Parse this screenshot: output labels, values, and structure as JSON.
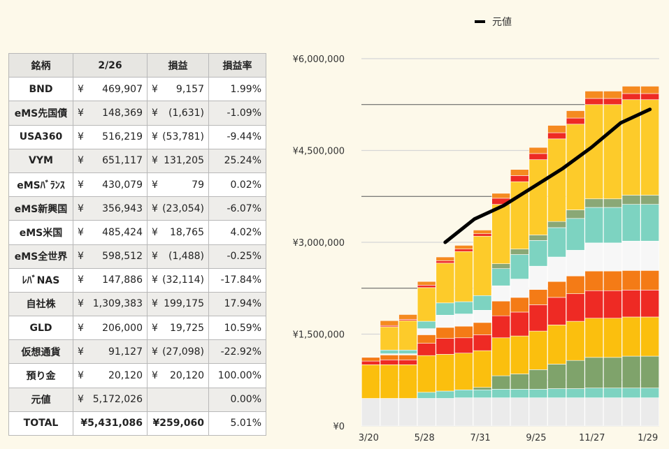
{
  "table": {
    "headers": [
      "銘柄",
      "2/26",
      "損益",
      "損益率"
    ],
    "rows": [
      {
        "name": "BND",
        "value_yen": "¥",
        "value": "469,907",
        "pl_yen": "¥",
        "pl": "9,157",
        "rate": "1.99%"
      },
      {
        "name": "eMS先国債",
        "value_yen": "¥",
        "value": "148,369",
        "pl_yen": "¥",
        "pl": "(1,631)",
        "rate": "-1.09%"
      },
      {
        "name": "USA360",
        "value_yen": "¥",
        "value": "516,219",
        "pl_yen": "¥",
        "pl": "(53,781)",
        "rate": "-9.44%"
      },
      {
        "name": "VYM",
        "value_yen": "¥",
        "value": "651,117",
        "pl_yen": "¥",
        "pl": "131,205",
        "rate": "25.24%"
      },
      {
        "name": "eMSﾊﾞﾗﾝｽ",
        "value_yen": "¥",
        "value": "430,079",
        "pl_yen": "¥",
        "pl": "79",
        "rate": "0.02%"
      },
      {
        "name": "eMS新興国",
        "value_yen": "¥",
        "value": "356,943",
        "pl_yen": "¥",
        "pl": "(23,054)",
        "rate": "-6.07%"
      },
      {
        "name": "eMS米国",
        "value_yen": "¥",
        "value": "485,424",
        "pl_yen": "¥",
        "pl": "18,765",
        "rate": "4.02%"
      },
      {
        "name": "eMS全世界",
        "value_yen": "¥",
        "value": "598,512",
        "pl_yen": "¥",
        "pl": "(1,488)",
        "rate": "-0.25%"
      },
      {
        "name": "ﾚﾊﾞNAS",
        "value_yen": "¥",
        "value": "147,886",
        "pl_yen": "¥",
        "pl": "(32,114)",
        "rate": "-17.84%"
      },
      {
        "name": "自社株",
        "value_yen": "¥",
        "value": "1,309,383",
        "pl_yen": "¥",
        "pl": "199,175",
        "rate": "17.94%"
      },
      {
        "name": "GLD",
        "value_yen": "¥",
        "value": "206,000",
        "pl_yen": "¥",
        "pl": "19,725",
        "rate": "10.59%"
      },
      {
        "name": "仮想通貨",
        "value_yen": "¥",
        "value": "91,127",
        "pl_yen": "¥",
        "pl": "(27,098)",
        "rate": "-22.92%"
      },
      {
        "name": "預り金",
        "value_yen": "¥",
        "value": "20,120",
        "pl_yen": "¥",
        "pl": "20,120",
        "rate": "100.00%"
      },
      {
        "name": "元値",
        "value_yen": "¥",
        "value": "5,172,026",
        "pl_yen": "",
        "pl": "",
        "rate": "0.00%"
      },
      {
        "name": "TOTAL",
        "value_yen": "",
        "value": "¥5,431,086",
        "pl_yen": "",
        "pl": "¥259,060",
        "rate": "5.01%"
      }
    ]
  },
  "chart_data": {
    "type": "bar",
    "stacked": true,
    "x_tick_labels": [
      "3/20",
      "5/28",
      "7/31",
      "9/25",
      "11/27",
      "1/29"
    ],
    "y_tick_labels": [
      "¥0",
      "¥1,500,000",
      "¥3,000,000",
      "¥4,500,000",
      "¥6,000,000"
    ],
    "ylim": [
      0,
      6000000
    ],
    "legend": {
      "position": "top-center",
      "entries": [
        "元値"
      ]
    },
    "colors": {
      "light_gray": "#ebebeb",
      "aqua": "#7dd3c1",
      "sage": "#7fa36b",
      "amber": "#fbbf0e",
      "red": "#ee2a24",
      "orange": "#f47b16",
      "white": "#f7f7f7",
      "teal": "#7dd3c1",
      "olive": "#8aa876",
      "yellow": "#fdcb2a",
      "red2": "#ee2a24",
      "orange2": "#f58a20",
      "line": "#000000"
    },
    "segment_order": [
      "light_gray",
      "aqua",
      "sage",
      "amber",
      "red",
      "orange",
      "white",
      "teal",
      "olive",
      "yellow",
      "red2",
      "orange2"
    ],
    "bars": [
      [
        450000,
        0,
        0,
        550000,
        60000,
        60000,
        0,
        0,
        0,
        0,
        0,
        0
      ],
      [
        450000,
        0,
        0,
        550000,
        80000,
        80000,
        20000,
        60000,
        0,
        380000,
        20000,
        80000
      ],
      [
        450000,
        0,
        0,
        550000,
        80000,
        80000,
        20000,
        60000,
        0,
        480000,
        20000,
        80000
      ],
      [
        450000,
        100000,
        0,
        600000,
        200000,
        140000,
        100000,
        120000,
        0,
        550000,
        40000,
        60000
      ],
      [
        450000,
        120000,
        0,
        600000,
        260000,
        180000,
        200000,
        200000,
        0,
        650000,
        40000,
        60000
      ],
      [
        460000,
        130000,
        0,
        600000,
        250000,
        190000,
        200000,
        200000,
        0,
        820000,
        40000,
        60000
      ],
      [
        460000,
        130000,
        40000,
        600000,
        260000,
        200000,
        200000,
        240000,
        0,
        970000,
        40000,
        60000
      ],
      [
        460000,
        140000,
        220000,
        620000,
        360000,
        240000,
        250000,
        280000,
        80000,
        970000,
        100000,
        80000
      ],
      [
        460000,
        140000,
        250000,
        620000,
        390000,
        240000,
        300000,
        400000,
        90000,
        1100000,
        100000,
        100000
      ],
      [
        460000,
        140000,
        320000,
        630000,
        430000,
        250000,
        380000,
        420000,
        90000,
        1230000,
        100000,
        100000
      ],
      [
        460000,
        150000,
        400000,
        640000,
        450000,
        260000,
        400000,
        480000,
        100000,
        1350000,
        100000,
        120000
      ],
      [
        460000,
        150000,
        460000,
        640000,
        450000,
        290000,
        420000,
        520000,
        140000,
        1400000,
        100000,
        120000
      ],
      [
        460000,
        160000,
        500000,
        640000,
        450000,
        320000,
        460000,
        580000,
        140000,
        1540000,
        100000,
        120000
      ],
      [
        460000,
        160000,
        500000,
        640000,
        450000,
        320000,
        460000,
        580000,
        140000,
        1540000,
        100000,
        120000
      ],
      [
        460000,
        160000,
        520000,
        640000,
        440000,
        320000,
        480000,
        600000,
        150000,
        1560000,
        100000,
        120000
      ],
      [
        460000,
        160000,
        520000,
        640000,
        440000,
        320000,
        480000,
        600000,
        150000,
        1560000,
        100000,
        120000
      ]
    ],
    "cost_line_series": {
      "name": "元値",
      "start_bar_index": 4,
      "values": [
        3000000,
        3380000,
        3600000,
        3900000,
        4200000,
        4550000,
        4950000,
        5172026
      ]
    }
  }
}
